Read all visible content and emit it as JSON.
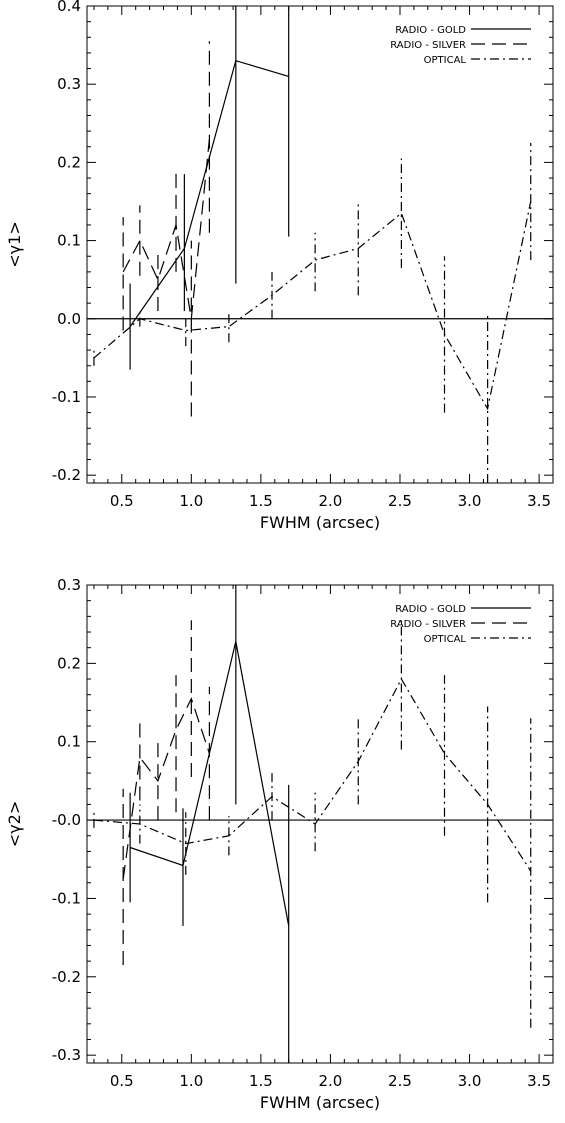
{
  "chart_data": [
    {
      "type": "line",
      "xlabel": "FWHM (arcsec)",
      "ylabel": "<γ1>",
      "xlim": [
        0.25,
        3.6
      ],
      "ylim": [
        -0.21,
        0.4
      ],
      "xticks": [
        0.5,
        1.0,
        1.5,
        2.0,
        2.5,
        3.0,
        3.5
      ],
      "xtick_labels": [
        "0.5",
        "1.0",
        "1.5",
        "2.0",
        "2.5",
        "3.0",
        "3.5"
      ],
      "yticks": [
        -0.2,
        -0.1,
        0.0,
        0.1,
        0.2,
        0.3,
        0.4
      ],
      "ytick_labels": [
        "-0.2",
        "-0.1",
        "0.0",
        "0.1",
        "0.2",
        "0.3",
        "0.4"
      ],
      "zero_line": true,
      "legend_position": "top-right",
      "series": [
        {
          "name": "RADIO - GOLD",
          "style": "solid",
          "x": [
            0.56,
            0.95,
            1.32,
            1.7
          ],
          "y": [
            -0.01,
            0.09,
            0.33,
            0.31
          ],
          "err_lo": [
            -0.065,
            0.01,
            0.045,
            0.105
          ],
          "err_hi": [
            0.045,
            0.185,
            0.4,
            0.4
          ]
        },
        {
          "name": "RADIO - SILVER",
          "style": "dashed",
          "x": [
            0.51,
            0.63,
            0.76,
            0.89,
            1.0,
            1.13
          ],
          "y": [
            0.06,
            0.1,
            0.05,
            0.12,
            0.0,
            0.23
          ],
          "err_lo": [
            -0.015,
            0.055,
            0.01,
            0.06,
            -0.125,
            0.11
          ],
          "err_hi": [
            0.13,
            0.145,
            0.09,
            0.19,
            0.1,
            0.355
          ]
        },
        {
          "name": "OPTICAL",
          "style": "dashdot",
          "x": [
            0.3,
            0.63,
            0.96,
            1.27,
            1.58,
            1.89,
            2.2,
            2.51,
            2.82,
            3.13,
            3.44
          ],
          "y": [
            -0.05,
            0.0,
            -0.015,
            -0.01,
            0.03,
            0.075,
            0.09,
            0.135,
            -0.02,
            -0.115,
            0.15
          ],
          "err_lo": [
            -0.06,
            -0.01,
            -0.035,
            -0.03,
            0.0,
            0.035,
            0.03,
            0.065,
            -0.12,
            -0.21,
            0.075
          ],
          "err_hi": [
            -0.04,
            0.01,
            0.0,
            0.01,
            0.06,
            0.11,
            0.15,
            0.205,
            0.08,
            0.005,
            0.225
          ]
        }
      ]
    },
    {
      "type": "line",
      "xlabel": "FWHM (arcsec)",
      "ylabel": "<γ2>",
      "xlim": [
        0.25,
        3.6
      ],
      "ylim": [
        -0.31,
        0.3
      ],
      "xticks": [
        0.5,
        1.0,
        1.5,
        2.0,
        2.5,
        3.0,
        3.5
      ],
      "xtick_labels": [
        "0.5",
        "1.0",
        "1.5",
        "2.0",
        "2.5",
        "3.0",
        "3.5"
      ],
      "yticks": [
        -0.3,
        -0.2,
        -0.1,
        0.0,
        0.1,
        0.2,
        0.3
      ],
      "ytick_labels": [
        "-0.3",
        "-0.2",
        "-0.1",
        "-0.0",
        "0.1",
        "0.2",
        "0.3"
      ],
      "zero_line": true,
      "legend_position": "top-right",
      "series": [
        {
          "name": "RADIO - GOLD",
          "style": "solid",
          "x": [
            0.56,
            0.94,
            1.32,
            1.7
          ],
          "y": [
            -0.035,
            -0.058,
            0.228,
            -0.135
          ],
          "err_lo": [
            -0.105,
            -0.135,
            0.02,
            -0.31
          ],
          "err_hi": [
            0.035,
            0.015,
            0.3,
            0.045
          ]
        },
        {
          "name": "RADIO - SILVER",
          "style": "dashed",
          "x": [
            0.51,
            0.63,
            0.76,
            0.89,
            1.0,
            1.13
          ],
          "y": [
            -0.075,
            0.08,
            0.05,
            0.115,
            0.155,
            0.085
          ],
          "err_lo": [
            -0.185,
            0.025,
            0.0,
            0.01,
            0.055,
            0.0
          ],
          "err_hi": [
            0.04,
            0.13,
            0.1,
            0.185,
            0.255,
            0.17
          ]
        },
        {
          "name": "OPTICAL",
          "style": "dashdot",
          "x": [
            0.3,
            0.63,
            0.96,
            1.27,
            1.58,
            1.89,
            2.2,
            2.51,
            2.82,
            3.13,
            3.44
          ],
          "y": [
            0.0,
            -0.005,
            -0.03,
            -0.02,
            0.03,
            -0.005,
            0.075,
            0.18,
            0.085,
            0.02,
            -0.065
          ],
          "err_lo": [
            -0.01,
            -0.03,
            -0.07,
            -0.045,
            0.0,
            -0.04,
            0.02,
            0.09,
            -0.02,
            -0.105,
            -0.265
          ],
          "err_hi": [
            0.01,
            0.02,
            0.01,
            0.005,
            0.06,
            0.035,
            0.13,
            0.26,
            0.185,
            0.145,
            0.13
          ]
        }
      ]
    }
  ]
}
